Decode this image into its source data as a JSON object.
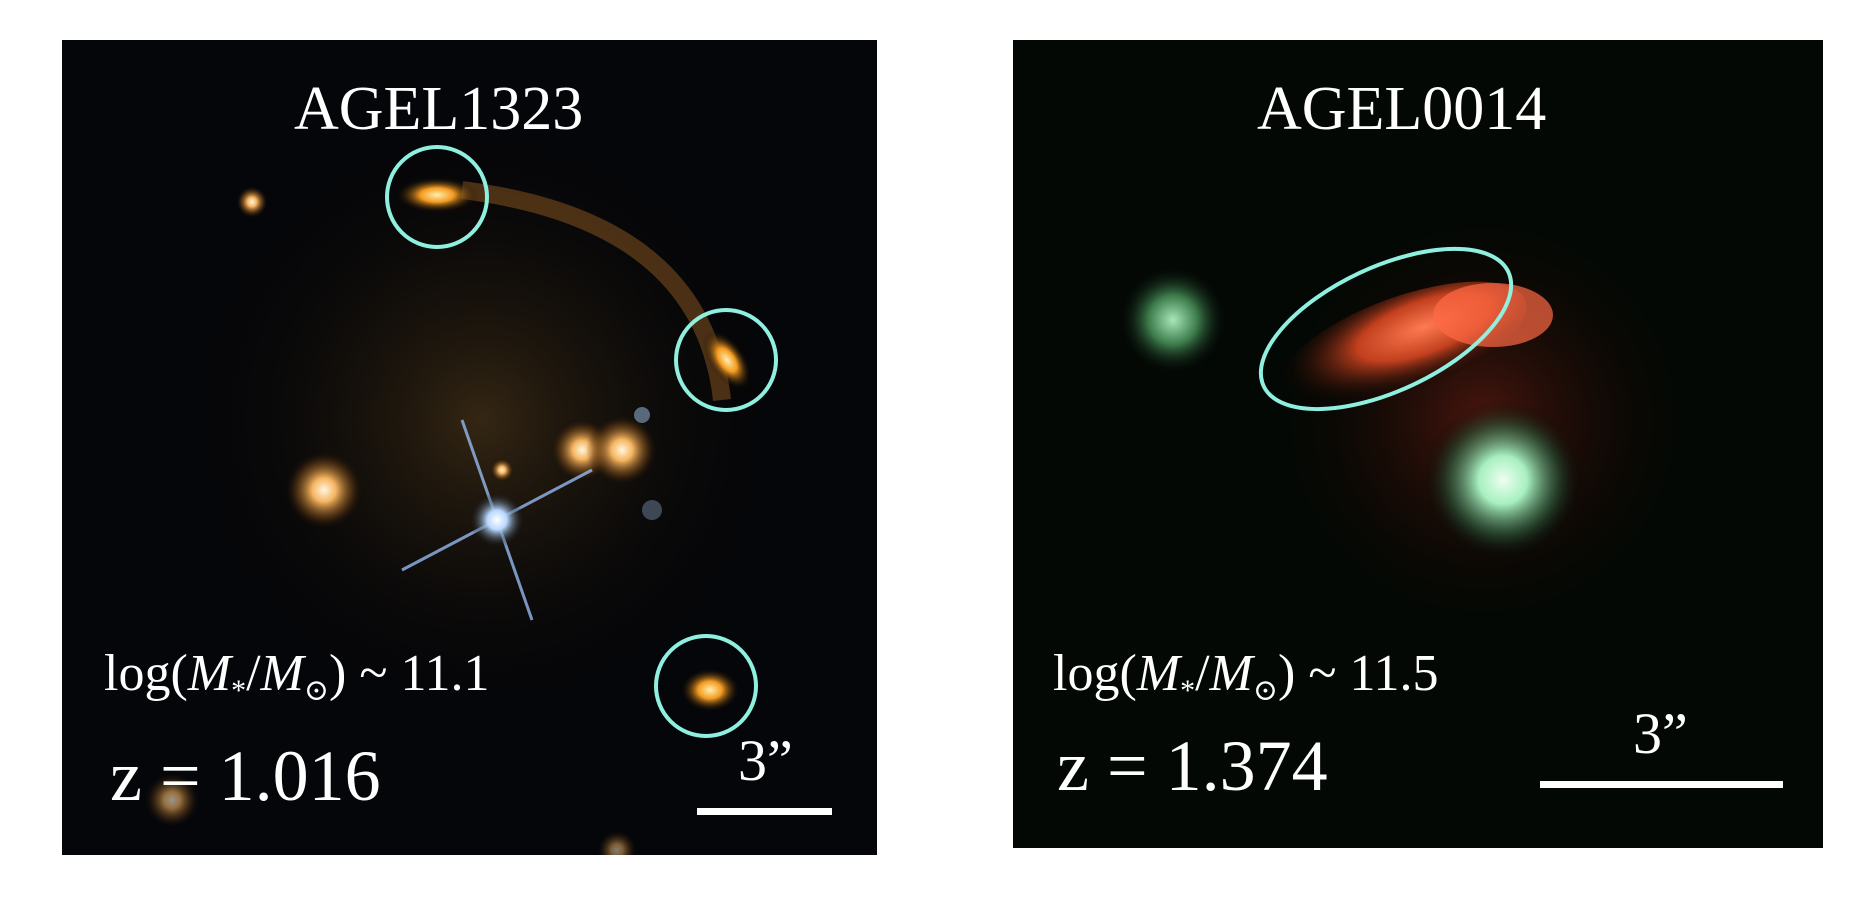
{
  "panels": [
    {
      "name": "AGEL1323",
      "mass_prefix": "log(",
      "mass_m_star": "M",
      "mass_star_sub": "*",
      "mass_slash": "/",
      "mass_m_sun": "M",
      "mass_sun_sub": "⊙",
      "mass_suffix": ") ~ 11.1",
      "redshift": "z = 1.016",
      "scale_label": "3”",
      "marker_color": "#8ff0e0"
    },
    {
      "name": "AGEL0014",
      "mass_prefix": "log(",
      "mass_m_star": "M",
      "mass_star_sub": "*",
      "mass_slash": "/",
      "mass_m_sun": "M",
      "mass_sun_sub": "⊙",
      "mass_suffix": ") ~ 11.5",
      "redshift": "z = 1.374",
      "scale_label": "3”",
      "marker_color": "#8ff0e0"
    }
  ]
}
